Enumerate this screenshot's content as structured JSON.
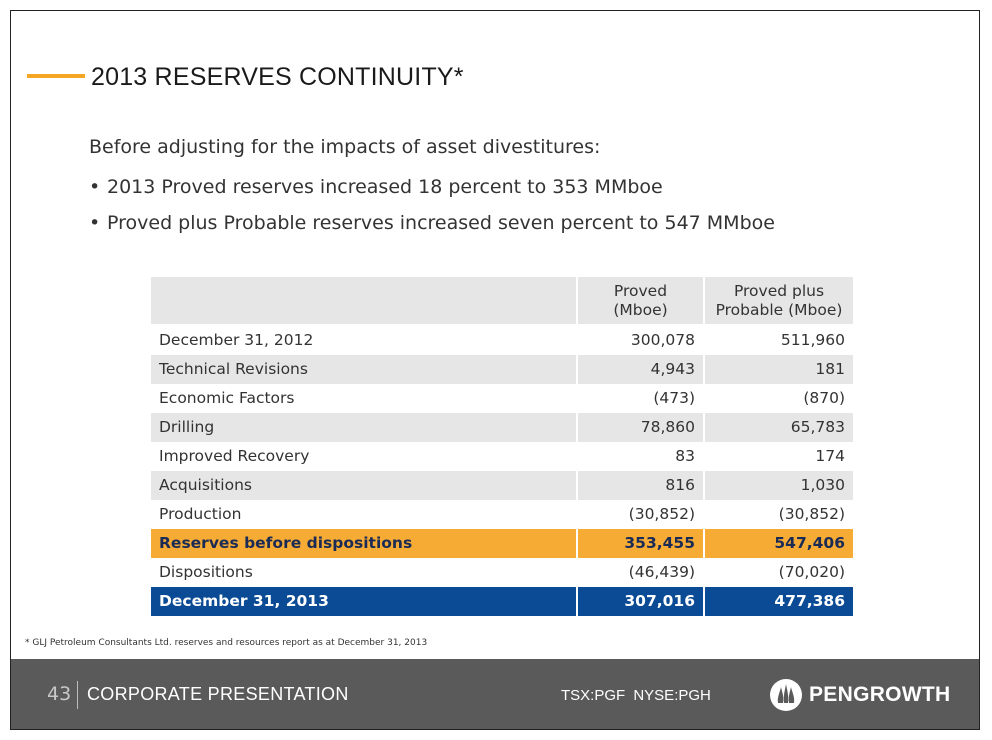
{
  "slide": {
    "title": "2013 RESERVES CONTINUITY*",
    "intro": "Before adjusting for the impacts of asset divestitures:",
    "bullets": [
      "2013 Proved reserves increased 18 percent to 353 MMboe",
      "Proved plus Probable reserves increased seven percent to 547 MMboe"
    ],
    "bullet_glyph": "•"
  },
  "table": {
    "headers": {
      "col2_line1": "Proved",
      "col2_line2": "(Mboe)",
      "col3_line1": "Proved plus",
      "col3_line2": "Probable (Mboe)"
    },
    "rows": [
      {
        "label": "December 31, 2012",
        "proved": "300,078",
        "pp": "511,960"
      },
      {
        "label": "Technical Revisions",
        "proved": "4,943",
        "pp": "181"
      },
      {
        "label": "Economic Factors",
        "proved": "(473)",
        "pp": "(870)"
      },
      {
        "label": "Drilling",
        "proved": "78,860",
        "pp": "65,783"
      },
      {
        "label": "Improved Recovery",
        "proved": "83",
        "pp": "174"
      },
      {
        "label": "Acquisitions",
        "proved": "816",
        "pp": "1,030"
      },
      {
        "label": "Production",
        "proved": "(30,852)",
        "pp": "(30,852)"
      },
      {
        "label": "Reserves before dispositions",
        "proved": "353,455",
        "pp": "547,406"
      },
      {
        "label": "Dispositions",
        "proved": "(46,439)",
        "pp": "(70,020)"
      },
      {
        "label": "December 31, 2013",
        "proved": "307,016",
        "pp": "477,386"
      }
    ]
  },
  "footnote": "* GLJ Petroleum Consultants Ltd. reserves and  resources report as at December 31, 2013",
  "footer": {
    "page_number": "43",
    "label": "CORPORATE PRESENTATION",
    "ticker": "TSX:PGF  NYSE:PGH",
    "logo_text": "PENGROWTH",
    "logo_icon": "pengrowth-flame-logo"
  },
  "colors": {
    "accent": "#f5a623",
    "highlight_row": "#f6ab35",
    "total_row": "#0b4b95",
    "footer_bg": "#5a5a5a"
  }
}
